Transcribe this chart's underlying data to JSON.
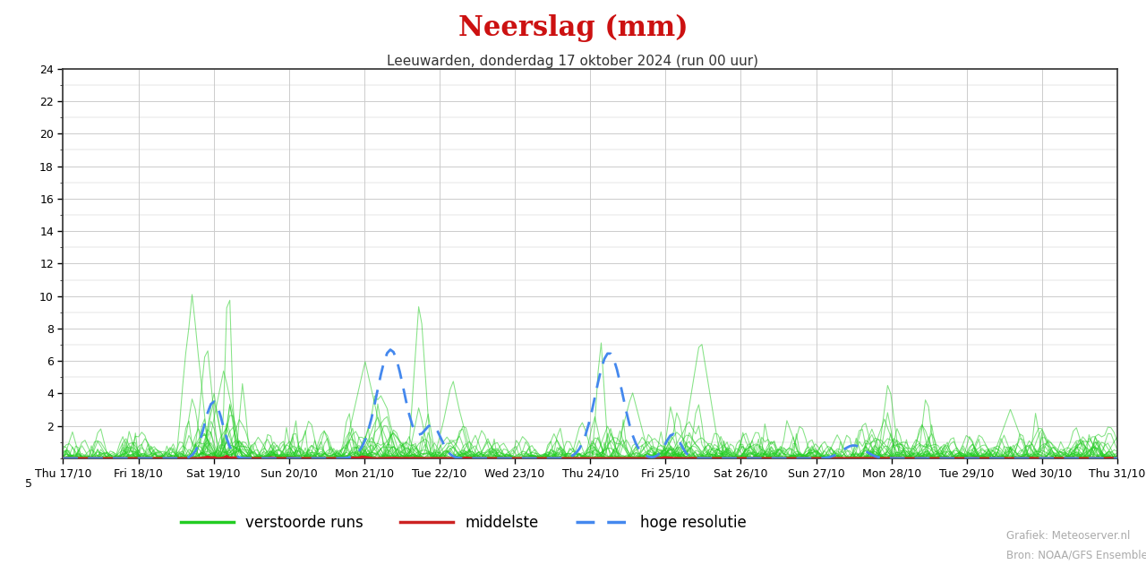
{
  "title": "Neerslag (mm)",
  "subtitle": "Leeuwarden, donderdag 17 oktober 2024 (run 00 uur)",
  "title_color": "#cc1111",
  "subtitle_color": "#333333",
  "ylim": [
    0,
    24
  ],
  "yticks": [
    2,
    4,
    6,
    8,
    10,
    12,
    14,
    16,
    18,
    20,
    22,
    24
  ],
  "n_steps": 336,
  "n_members": 50,
  "seed": 7,
  "x_tick_labels": [
    "Thu 17/10",
    "Fri 18/10",
    "Sat 19/10",
    "Sun 20/10",
    "Mon 21/10",
    "Tue 22/10",
    "Wed 23/10",
    "Thu 24/10",
    "Fri 25/10",
    "Sat 26/10",
    "Sun 27/10",
    "Mon 28/10",
    "Tue 29/10",
    "Wed 30/10",
    "Thu 31/10"
  ],
  "green_color": "#22cc22",
  "red_color": "#cc2222",
  "blue_color": "#4488ee",
  "legend_label_green": "verstoorde runs",
  "legend_label_red": "middelste",
  "legend_label_blue": "hoge resolutie",
  "source_text1": "Grafiek: Meteoserver.nl",
  "source_text2": "Bron: NOAA/GFS Ensemble",
  "background_color": "#ffffff",
  "grid_color": "#cccccc"
}
